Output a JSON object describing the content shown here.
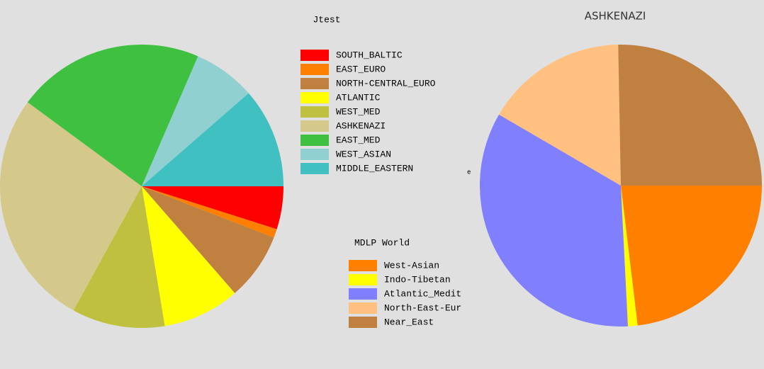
{
  "chart_data": [
    {
      "type": "pie",
      "title": "Jtest",
      "categories": [
        "SOUTH_BALTIC",
        "EAST_EURO",
        "NORTH-CENTRAL_EURO",
        "ATLANTIC",
        "WEST_MED",
        "ASHKENAZI",
        "EAST_MED",
        "WEST_ASIAN",
        "MIDDLE_EASTERN"
      ],
      "values": [
        4.9,
        1.0,
        7.7,
        8.8,
        10.6,
        27.1,
        21.4,
        7.1,
        11.4
      ],
      "colors": [
        "#ff0000",
        "#ff8000",
        "#c08040",
        "#ffff00",
        "#c0c040",
        "#d4c98a",
        "#40c040",
        "#90d0d0",
        "#40c0c0"
      ]
    },
    {
      "type": "pie",
      "title": "ASHKENAZI",
      "legend_title": "MDLP World",
      "annotation": "e",
      "categories": [
        "West-Asian",
        "Indo-Tibetan",
        "Atlantic_Medit",
        "North-East-Eur",
        "Near_East"
      ],
      "values": [
        23.1,
        1.1,
        34.2,
        16.3,
        25.3
      ],
      "colors": [
        "#ff8000",
        "#ffff00",
        "#8080ff",
        "#ffc080",
        "#c08040"
      ]
    }
  ]
}
